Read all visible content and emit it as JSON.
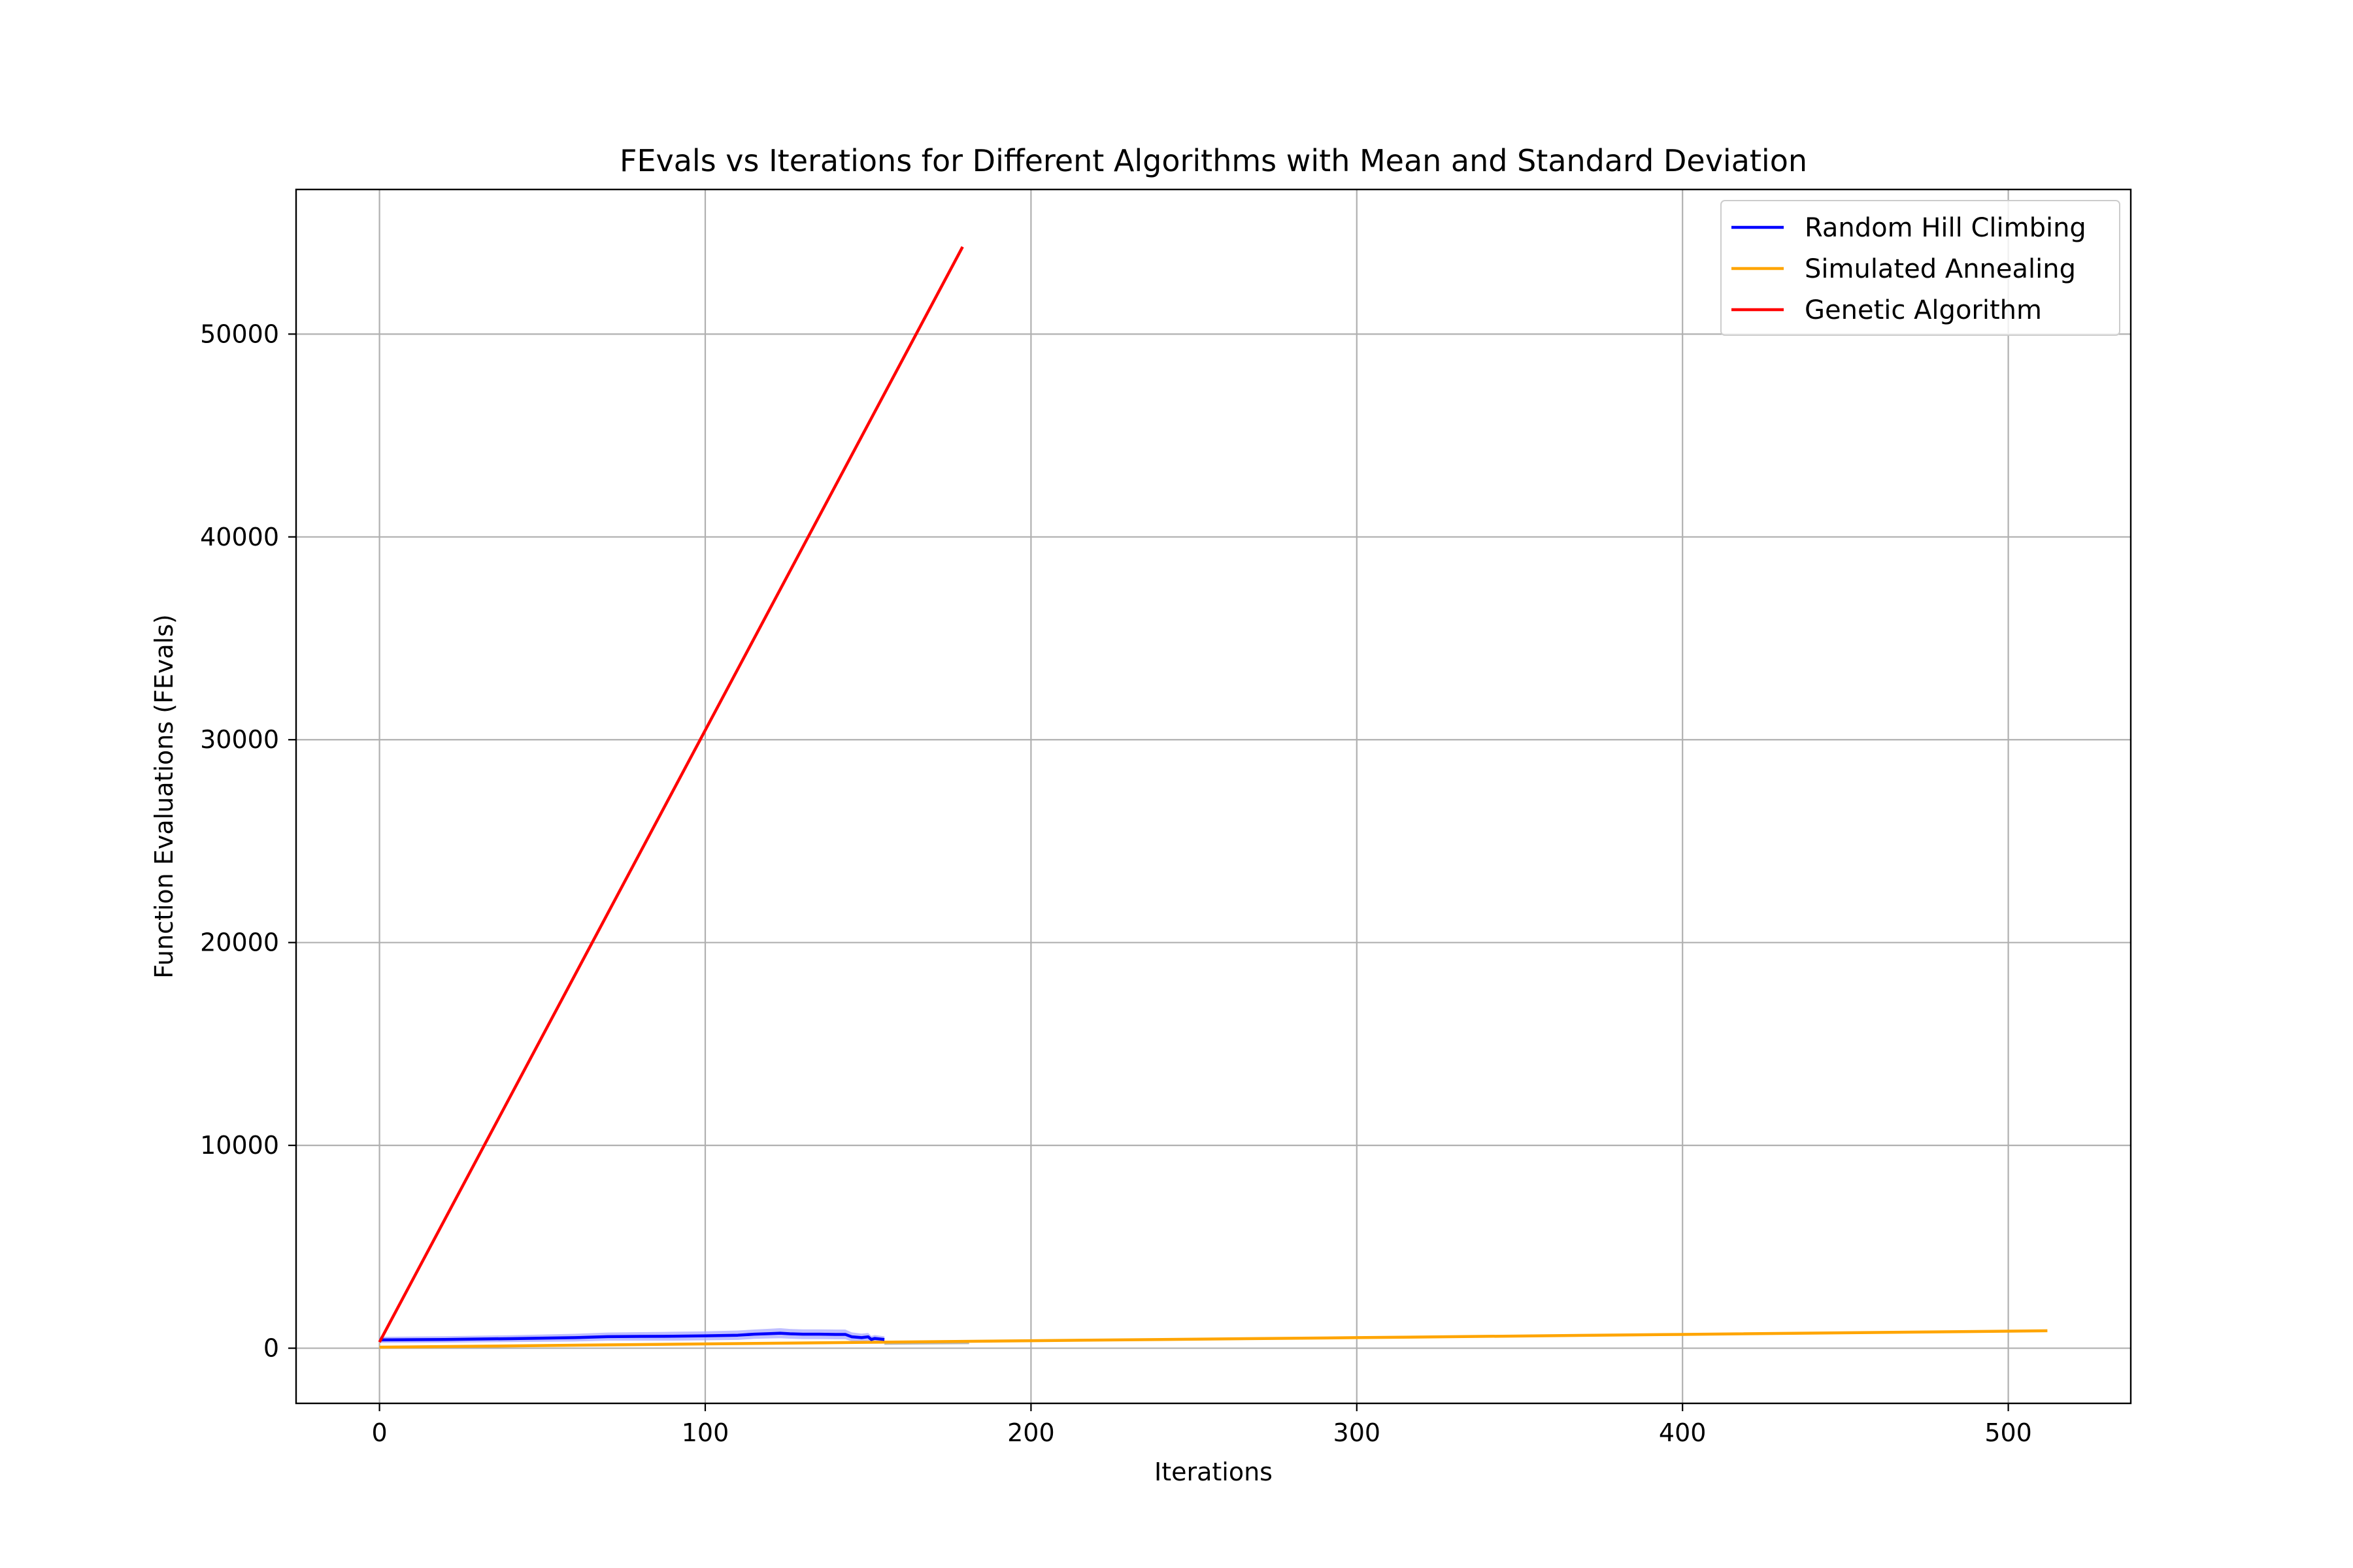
{
  "chart_data": {
    "type": "line",
    "title": "FEvals vs Iterations for Different Algorithms with Mean and Standard Deviation",
    "xlabel": "Iterations",
    "ylabel": "Function Evaluations (FEvals)",
    "xlim": [
      -25.6,
      537.6
    ],
    "ylim": [
      -2720,
      57130
    ],
    "xticks": [
      0,
      100,
      200,
      300,
      400,
      500
    ],
    "yticks": [
      0,
      10000,
      20000,
      30000,
      40000,
      50000
    ],
    "grid": true,
    "legend": {
      "position": "top-right"
    },
    "series": [
      {
        "name": "Random Hill Climbing",
        "color": "#0000ff",
        "band_color": "#aaaaff",
        "x": [
          0,
          20,
          40,
          60,
          70,
          80,
          90,
          100,
          110,
          115,
          120,
          123,
          126,
          130,
          135,
          140,
          143,
          145,
          148,
          150,
          151,
          152,
          155
        ],
        "y": [
          410,
          430,
          470,
          520,
          570,
          580,
          590,
          610,
          640,
          690,
          720,
          740,
          710,
          690,
          690,
          680,
          680,
          560,
          520,
          560,
          430,
          480,
          430
        ],
        "y_std": [
          150,
          160,
          170,
          190,
          200,
          210,
          220,
          220,
          230,
          230,
          240,
          250,
          240,
          240,
          240,
          240,
          240,
          220,
          200,
          190,
          170,
          170,
          150
        ]
      },
      {
        "name": "Simulated Annealing",
        "color": "#ffa500",
        "x": [
          0,
          100,
          200,
          300,
          400,
          512
        ],
        "y": [
          50,
          210,
          370,
          520,
          680,
          860
        ],
        "extra_segment": {
          "x": [
            155,
            181
          ],
          "y": [
            240,
            270
          ],
          "color": "#b8b8b8"
        }
      },
      {
        "name": "Genetic Algorithm",
        "color": "#ff0000",
        "x": [
          0,
          179
        ],
        "y": [
          300,
          54300
        ]
      }
    ]
  }
}
